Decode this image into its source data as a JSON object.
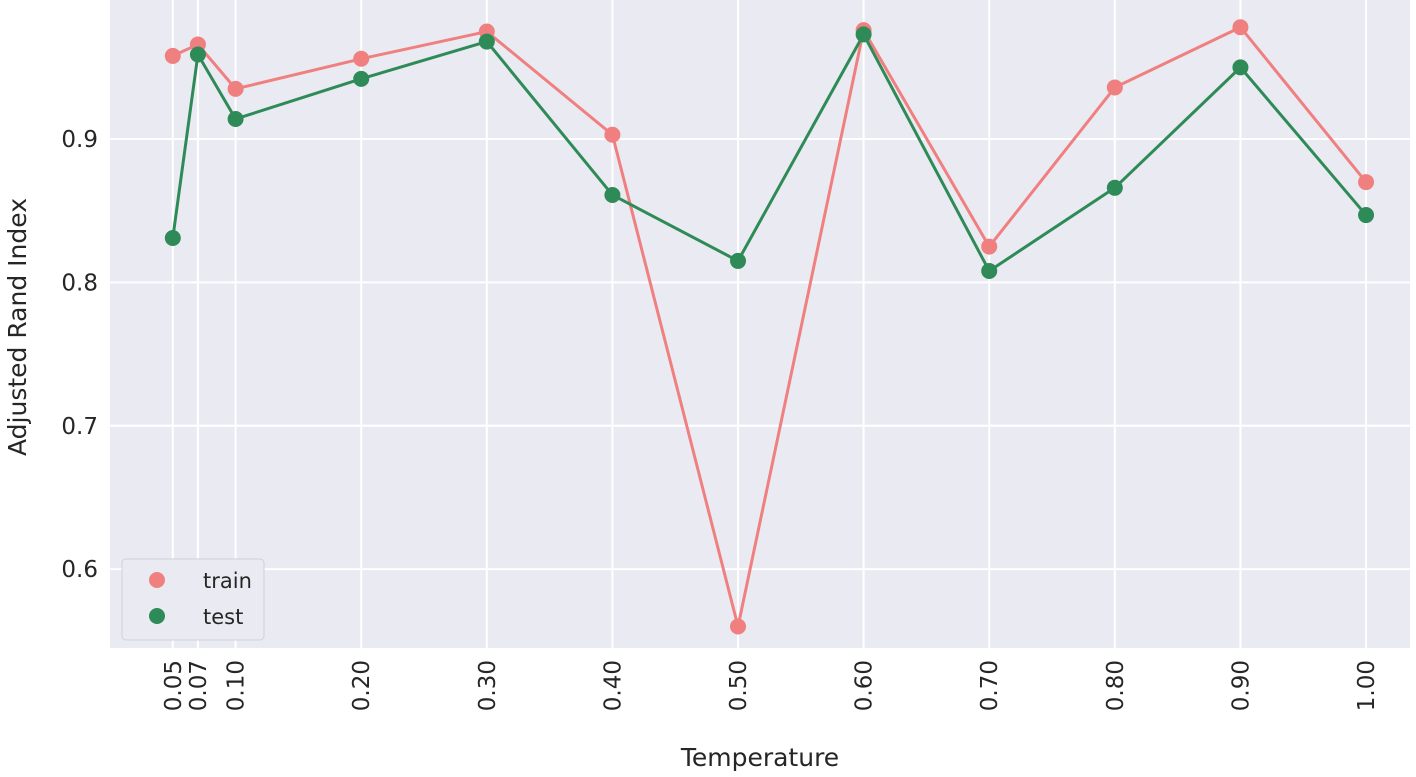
{
  "chart_data": {
    "type": "line",
    "xlabel": "Temperature",
    "ylabel": "Adjusted Rand Index",
    "x": [
      0.05,
      0.07,
      0.1,
      0.2,
      0.3,
      0.4,
      0.5,
      0.6,
      0.7,
      0.8,
      0.9,
      1.0
    ],
    "x_tick_labels": [
      "0.05",
      "0.07",
      "0.10",
      "0.20",
      "0.30",
      "0.40",
      "0.50",
      "0.60",
      "0.70",
      "0.80",
      "0.90",
      "1.00"
    ],
    "y_ticks": [
      0.6,
      0.7,
      0.8,
      0.9
    ],
    "y_tick_labels": [
      "0.6",
      "0.7",
      "0.8",
      "0.9"
    ],
    "xlim": [
      0.0,
      1.035
    ],
    "ylim": [
      0.545,
      0.997
    ],
    "grid": true,
    "legend_position": "lower-left",
    "series": [
      {
        "name": "train",
        "color": "#f08080",
        "values": [
          0.958,
          0.966,
          0.935,
          0.956,
          0.975,
          0.903,
          0.56,
          0.976,
          0.825,
          0.936,
          0.978,
          0.87
        ]
      },
      {
        "name": "test",
        "color": "#2e8b57",
        "values": [
          0.831,
          0.959,
          0.914,
          0.942,
          0.968,
          0.861,
          0.815,
          0.973,
          0.808,
          0.866,
          0.95,
          0.847
        ]
      }
    ]
  }
}
